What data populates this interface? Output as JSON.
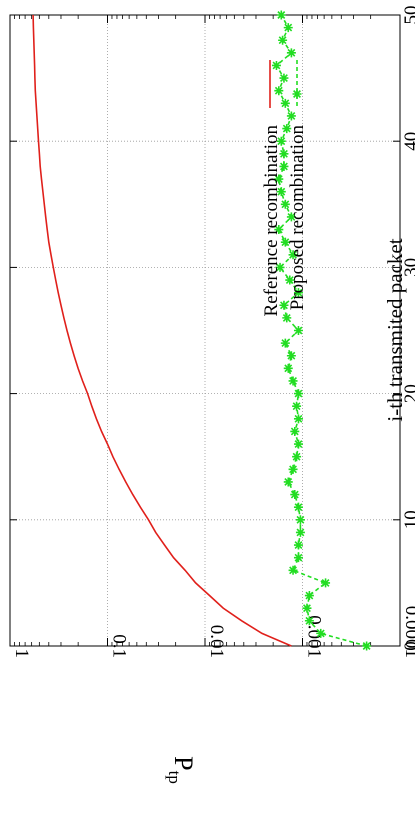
{
  "chart_data": {
    "type": "line",
    "orientation": "rotated-90-clockwise",
    "xlabel": "i-th transmited packet",
    "ylabel_main": "P",
    "ylabel_sub": "tp",
    "y_scale": "log",
    "xlim": [
      0,
      50
    ],
    "ylim": [
      0.0001,
      1
    ],
    "x_ticks": [
      {
        "value": 0,
        "label": "0"
      },
      {
        "value": 10,
        "label": "10"
      },
      {
        "value": 20,
        "label": "20"
      },
      {
        "value": 30,
        "label": "30"
      },
      {
        "value": 40,
        "label": "40"
      },
      {
        "value": 50,
        "label": "50"
      }
    ],
    "y_ticks": [
      {
        "value": 1,
        "label": "1"
      },
      {
        "value": 0.1,
        "label": "0.1"
      },
      {
        "value": 0.01,
        "label": "0.01"
      },
      {
        "value": 0.001,
        "label": "0.001"
      },
      {
        "value": 0.0001,
        "label": "0.0001"
      }
    ],
    "grid": true,
    "legend_position": "bottom-right of rotated plot",
    "series": [
      {
        "name": "Reference recombination",
        "color": "#e0201b",
        "style": "solid",
        "marker": "none",
        "x": [
          0,
          1,
          2,
          3,
          4,
          5,
          6,
          7,
          8,
          9,
          10,
          11,
          12,
          13,
          14,
          15,
          16,
          17,
          18,
          19,
          20,
          21,
          22,
          23,
          24,
          25,
          26,
          27,
          28,
          29,
          30,
          31,
          32,
          33,
          34,
          35,
          36,
          37,
          38,
          39,
          40,
          41,
          42,
          43,
          44,
          45,
          46,
          47,
          48,
          49,
          50
        ],
        "y": [
          0.0013,
          0.0026,
          0.0042,
          0.0065,
          0.009,
          0.0125,
          0.016,
          0.021,
          0.026,
          0.032,
          0.038,
          0.046,
          0.055,
          0.065,
          0.076,
          0.088,
          0.1,
          0.115,
          0.13,
          0.145,
          0.16,
          0.18,
          0.2,
          0.22,
          0.24,
          0.26,
          0.28,
          0.3,
          0.32,
          0.34,
          0.36,
          0.38,
          0.4,
          0.415,
          0.43,
          0.445,
          0.46,
          0.475,
          0.49,
          0.5,
          0.51,
          0.52,
          0.53,
          0.54,
          0.55,
          0.555,
          0.56,
          0.565,
          0.57,
          0.575,
          0.58
        ]
      },
      {
        "name": "Proposed recombination",
        "color": "#22dd22",
        "style": "dashed",
        "marker": "star",
        "x": [
          0,
          1,
          2,
          3,
          4,
          5,
          6,
          7,
          8,
          9,
          10,
          11,
          12,
          13,
          14,
          15,
          16,
          17,
          18,
          19,
          20,
          21,
          22,
          23,
          24,
          25,
          26,
          27,
          28,
          29,
          30,
          31,
          32,
          33,
          34,
          35,
          36,
          37,
          38,
          39,
          40,
          41,
          42,
          43,
          44,
          45,
          46,
          47,
          48,
          49,
          50
        ],
        "y": [
          0.00022,
          0.00065,
          0.00085,
          0.0009,
          0.00085,
          0.00058,
          0.00125,
          0.0011,
          0.0011,
          0.00105,
          0.00105,
          0.0011,
          0.0012,
          0.0014,
          0.00125,
          0.00115,
          0.0011,
          0.0012,
          0.0011,
          0.00115,
          0.0011,
          0.00125,
          0.0014,
          0.0013,
          0.0015,
          0.0011,
          0.00145,
          0.00155,
          0.0011,
          0.00135,
          0.0017,
          0.00125,
          0.0015,
          0.00175,
          0.0013,
          0.0015,
          0.00165,
          0.00175,
          0.00155,
          0.00155,
          0.00165,
          0.00145,
          0.0013,
          0.0015,
          0.00175,
          0.00155,
          0.00185,
          0.0013,
          0.0016,
          0.0014,
          0.00165
        ]
      }
    ]
  }
}
